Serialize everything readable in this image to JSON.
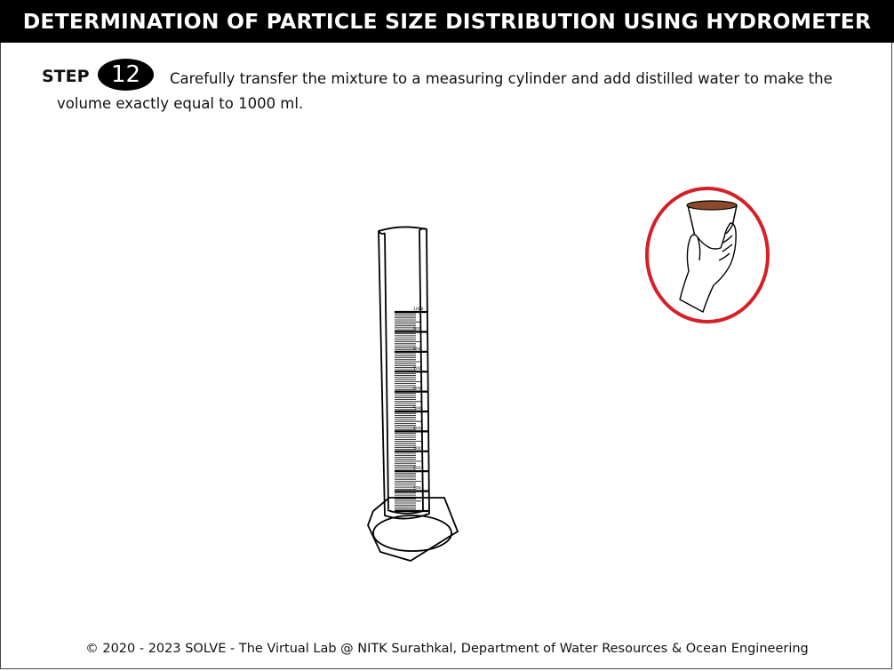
{
  "header": {
    "title": "DETERMINATION OF PARTICLE SIZE DISTRIBUTION USING HYDROMETER"
  },
  "step": {
    "label": "STEP",
    "number": "12",
    "instruction": "Carefully transfer the mixture to a measuring cylinder and add distilled water to make the volume exactly equal to 1000 ml."
  },
  "cylinder": {
    "scale_labels": [
      "1000",
      "900",
      "800",
      "700",
      "600",
      "500",
      "400",
      "300",
      "200",
      "100"
    ]
  },
  "beaker": {
    "ring_color": "#d61f26",
    "mixture_color": "#8b4a2b"
  },
  "footer": {
    "copyright": "© 2020 - 2023 SOLVE - The Virtual Lab @ NITK Surathkal, Department of Water Resources & Ocean Engineering"
  }
}
